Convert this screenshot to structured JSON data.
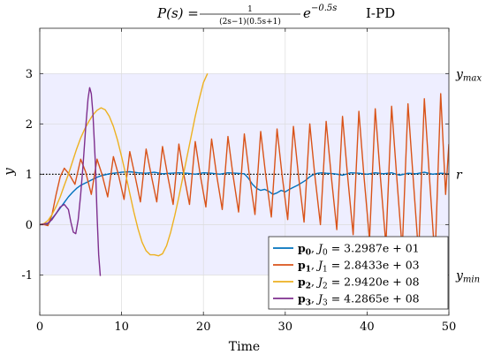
{
  "chart_data": {
    "type": "line",
    "title_tex": "P(s) = 1 / ((2s−1)(0.5s+1)) e^(−0.5s)",
    "title_parts": {
      "lhs": "P(s) =",
      "num": "1",
      "den": "(2s−1)(0.5s+1)",
      "exp_base": "e",
      "exp": "−0.5s",
      "controller": "I-PD"
    },
    "xlabel": "Time",
    "ylabel": "y",
    "xlim": [
      0,
      50
    ],
    "ylim": [
      -1.8,
      3.9
    ],
    "xticks": [
      "0",
      "10",
      "20",
      "30",
      "40",
      "50"
    ],
    "yticks": [
      "-1",
      "0",
      "1",
      "2",
      "3"
    ],
    "grid": true,
    "band": {
      "ymin": -1,
      "ymax": 3,
      "color": "#eeeeff"
    },
    "reference": {
      "y": 1,
      "style": "dotted",
      "color": "#000000"
    },
    "right_labels": [
      {
        "text": "y",
        "sub": "max",
        "y": 3
      },
      {
        "text": "r",
        "sub": "",
        "y": 1
      },
      {
        "text": "y",
        "sub": "min",
        "y": -1
      }
    ],
    "legend_position": "bottom-right",
    "series": [
      {
        "name": "p0, J0 = 3.2987e+01",
        "label_main": "p",
        "label_sub": "0",
        "label_J": "J",
        "label_Jsub": "0",
        "label_value": "= 3.2987e + 01",
        "color": "#0072BD",
        "x": [
          0,
          0.5,
          1,
          1.5,
          2,
          2.5,
          3,
          3.5,
          4,
          4.5,
          5,
          5.5,
          6,
          6.5,
          7,
          7.5,
          8,
          8.5,
          9,
          9.5,
          10,
          11,
          12,
          13,
          14,
          15,
          16,
          17,
          18,
          19,
          20,
          21,
          22,
          23,
          24,
          25,
          25.5,
          26,
          26.5,
          27,
          27.5,
          28,
          28.5,
          29,
          29.5,
          30,
          30.5,
          31,
          31.5,
          32,
          32.5,
          33,
          33.5,
          34,
          34.5,
          35,
          36,
          37,
          38,
          39,
          40,
          41,
          42,
          43,
          44,
          45,
          46,
          47,
          48,
          49,
          50
        ],
        "y": [
          0,
          0.01,
          0.0,
          0.12,
          0.22,
          0.33,
          0.44,
          0.55,
          0.64,
          0.72,
          0.78,
          0.82,
          0.86,
          0.9,
          0.94,
          0.97,
          0.99,
          1.01,
          1.02,
          1.03,
          1.04,
          1.05,
          1.03,
          1.02,
          1.04,
          1.01,
          1.02,
          1.03,
          1.02,
          1.0,
          1.03,
          1.02,
          1.0,
          1.03,
          1.02,
          1.01,
          0.92,
          0.8,
          0.72,
          0.68,
          0.7,
          0.66,
          0.6,
          0.63,
          0.68,
          0.65,
          0.7,
          0.74,
          0.78,
          0.83,
          0.88,
          0.95,
          1.0,
          1.02,
          1.03,
          1.02,
          1.01,
          0.98,
          1.03,
          1.02,
          1.0,
          1.03,
          1.01,
          1.03,
          0.98,
          1.02,
          1.01,
          1.04,
          1.0,
          1.02,
          1.01
        ]
      },
      {
        "name": "p1, J1 = 2.8433e+03",
        "label_main": "p",
        "label_sub": "1",
        "label_J": "J",
        "label_Jsub": "1",
        "label_value": "= 2.8433e + 03",
        "color": "#D95319",
        "x": [
          0,
          0.5,
          1,
          1.5,
          2,
          2.5,
          3,
          3.6,
          4.3,
          5.0,
          5.6,
          6.3,
          7.0,
          7.6,
          8.3,
          9.0,
          9.6,
          10.3,
          11.0,
          11.6,
          12.3,
          13.0,
          13.6,
          14.3,
          15.0,
          15.6,
          16.3,
          17.0,
          17.6,
          18.3,
          19.0,
          19.6,
          20.3,
          21.0,
          21.6,
          22.3,
          23.0,
          23.6,
          24.3,
          25.0,
          25.6,
          26.3,
          27.0,
          27.6,
          28.3,
          29.0,
          29.6,
          30.3,
          31.0,
          31.6,
          32.3,
          33.0,
          33.6,
          34.3,
          35.0,
          35.6,
          36.3,
          37.0,
          37.6,
          38.3,
          39.0,
          39.6,
          40.3,
          41.0,
          41.6,
          42.3,
          43.0,
          43.6,
          44.3,
          45.0,
          45.6,
          46.3,
          47.0,
          47.6,
          48.3,
          49.0,
          49.6,
          50.0
        ],
        "y": [
          0,
          0.0,
          -0.02,
          0.2,
          0.6,
          0.95,
          1.12,
          1.0,
          0.8,
          1.3,
          1.05,
          0.6,
          1.3,
          1.0,
          0.55,
          1.35,
          1.0,
          0.5,
          1.45,
          1.0,
          0.45,
          1.5,
          1.0,
          0.45,
          1.55,
          1.0,
          0.4,
          1.6,
          1.0,
          0.4,
          1.65,
          1.0,
          0.35,
          1.7,
          1.0,
          0.3,
          1.75,
          1.0,
          0.25,
          1.8,
          1.0,
          0.2,
          1.85,
          1.0,
          0.15,
          1.9,
          1.0,
          0.1,
          1.95,
          1.0,
          0.05,
          2.0,
          1.0,
          0.0,
          2.05,
          1.0,
          -0.1,
          2.15,
          1.0,
          -0.2,
          2.25,
          1.0,
          -0.3,
          2.3,
          1.0,
          -0.4,
          2.35,
          1.0,
          -0.5,
          2.4,
          1.0,
          -0.6,
          2.5,
          1.0,
          -0.7,
          2.6,
          0.6,
          1.6
        ]
      },
      {
        "name": "p2, J2 = 2.9420e+08",
        "label_main": "p",
        "label_sub": "2",
        "label_J": "J",
        "label_Jsub": "2",
        "label_value": "= 2.9420e + 08",
        "color": "#EDB120",
        "x": [
          0,
          0.5,
          1,
          1.5,
          2,
          2.5,
          3,
          3.5,
          4,
          4.5,
          5,
          5.5,
          6,
          6.5,
          7,
          7.5,
          8,
          8.5,
          9,
          9.5,
          10,
          10.5,
          11,
          11.5,
          12,
          12.5,
          13,
          13.5,
          14,
          14.5,
          15,
          15.5,
          16,
          16.5,
          17,
          17.5,
          18,
          18.5,
          19,
          19.5,
          20,
          20.5
        ],
        "y": [
          0,
          0.02,
          0.08,
          0.2,
          0.36,
          0.55,
          0.78,
          1.0,
          1.25,
          1.5,
          1.72,
          1.9,
          2.05,
          2.18,
          2.27,
          2.32,
          2.28,
          2.15,
          1.95,
          1.68,
          1.35,
          1.0,
          0.62,
          0.25,
          -0.08,
          -0.35,
          -0.52,
          -0.6,
          -0.6,
          -0.62,
          -0.58,
          -0.42,
          -0.15,
          0.18,
          0.55,
          0.95,
          1.35,
          1.75,
          2.15,
          2.5,
          2.82,
          3.0
        ]
      },
      {
        "name": "p3, J3 = 4.2865e+08",
        "label_main": "p",
        "label_sub": "3",
        "label_J": "J",
        "label_Jsub": "3",
        "label_value": "= 4.2865e + 08",
        "color": "#7E2F8E",
        "x": [
          0,
          0.5,
          1,
          1.5,
          2,
          2.5,
          3,
          3.5,
          3.8,
          4.1,
          4.4,
          4.7,
          5.0,
          5.3,
          5.6,
          5.9,
          6.1,
          6.3,
          6.5,
          6.8,
          7.0,
          7.2,
          7.4
        ],
        "y": [
          0,
          0.01,
          0.03,
          0.1,
          0.22,
          0.35,
          0.4,
          0.3,
          0.05,
          -0.15,
          -0.18,
          0.1,
          0.6,
          1.2,
          1.9,
          2.5,
          2.72,
          2.6,
          2.2,
          1.2,
          0.2,
          -0.6,
          -1.02
        ]
      }
    ]
  }
}
